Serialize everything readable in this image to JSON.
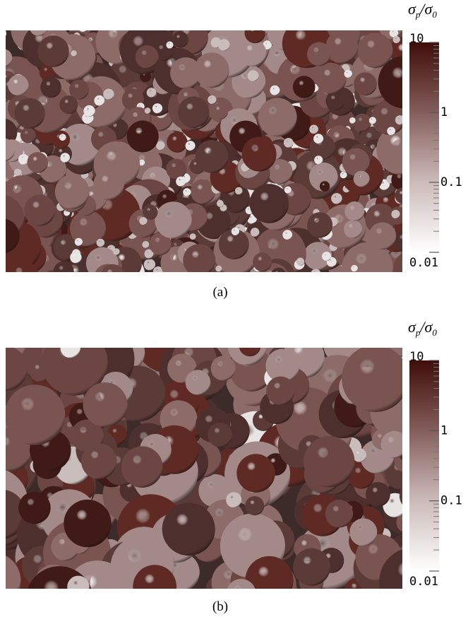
{
  "panels": [
    {
      "caption": "(a)",
      "colorbar": {
        "label_parts": [
          "σ",
          "p",
          "/σ",
          "0"
        ],
        "scale": "log",
        "lim": [
          0.01,
          10
        ],
        "ticks": [
          10,
          1,
          0.1,
          0.01
        ]
      }
    },
    {
      "caption": "(b)",
      "colorbar": {
        "label_parts": [
          "σ",
          "p",
          "/σ",
          "0"
        ],
        "scale": "log",
        "lim": [
          0.01,
          10
        ],
        "ticks": [
          10,
          1,
          0.1,
          0.01
        ]
      }
    }
  ]
}
